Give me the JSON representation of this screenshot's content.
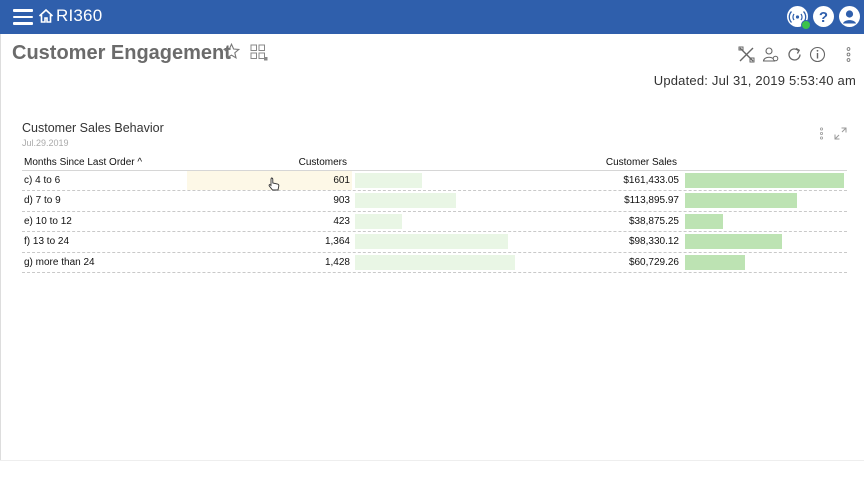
{
  "app": {
    "name": "RI360"
  },
  "page": {
    "title": "Customer Engagement",
    "updated": "Updated: Jul 31, 2019 5:53:40 am"
  },
  "widget": {
    "title": "Customer Sales Behavior",
    "date": "Jul.29.2019",
    "columns": {
      "months": "Months Since Last Order ^",
      "customers": "Customers",
      "sales": "Customer Sales"
    },
    "rows": [
      {
        "months": "c) 4 to 6",
        "customers": "601",
        "customers_value": 601,
        "sales": "$161,433.05",
        "sales_value": 161433.05
      },
      {
        "months": "d) 7 to 9",
        "customers": "903",
        "customers_value": 903,
        "sales": "$113,895.97",
        "sales_value": 113895.97
      },
      {
        "months": "e) 10 to 12",
        "customers": "423",
        "customers_value": 423,
        "sales": "$38,875.25",
        "sales_value": 38875.25
      },
      {
        "months": "f) 13 to 24",
        "customers": "1,364",
        "customers_value": 1364,
        "sales": "$98,330.12",
        "sales_value": 98330.12
      },
      {
        "months": "g) more than 24",
        "customers": "1,428",
        "customers_value": 1428,
        "sales": "$60,729.26",
        "sales_value": 60729.26
      }
    ]
  },
  "colors": {
    "topbar": "#2f5fac",
    "status_online": "#3cc24a",
    "customers_bar": "#e9f6e5",
    "sales_bar": "#bde3b3",
    "hover_cell": "#fdf8e7"
  },
  "icons": {
    "menu": "hamburger-icon",
    "home": "home-icon",
    "connection": "connection-status-icon",
    "help": "help-icon",
    "user": "user-icon",
    "favorite": "star-icon",
    "dashboard": "dashboard-grid-icon",
    "tools": "tools-icon",
    "share_user": "share-user-icon",
    "refresh": "refresh-icon",
    "info": "info-icon",
    "more": "more-vertical-icon",
    "expand": "expand-icon",
    "cursor": "pointer-cursor-icon"
  }
}
